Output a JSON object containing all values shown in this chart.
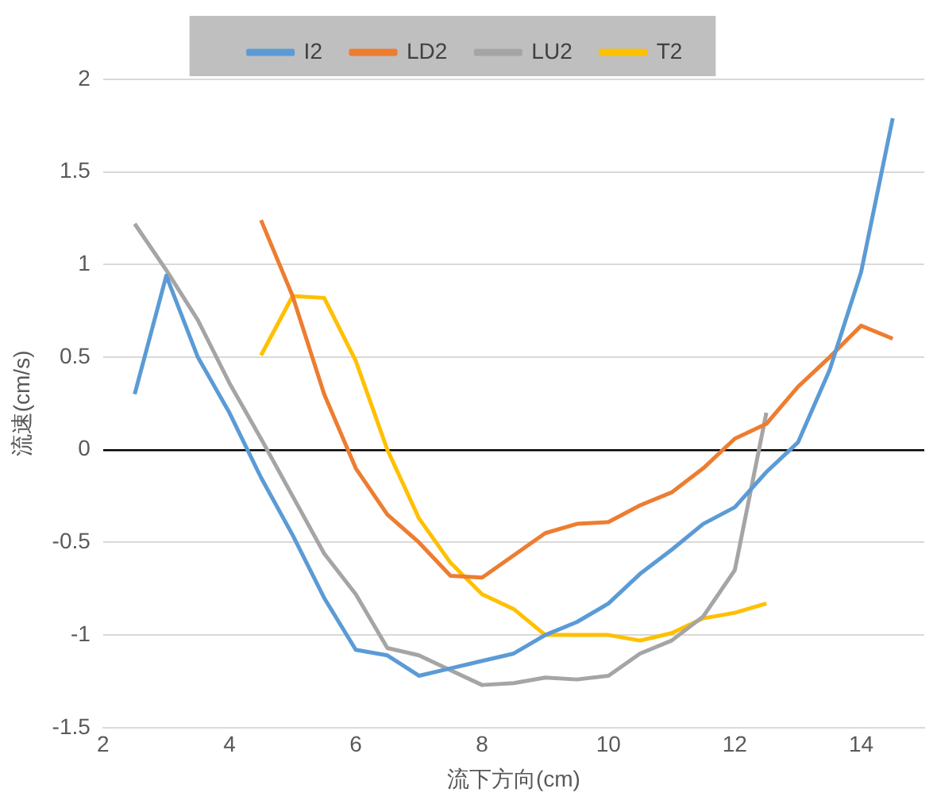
{
  "chart_data": {
    "type": "line",
    "xlabel": "流下方向(cm)",
    "ylabel": "流速(cm/s)",
    "xlim": [
      2,
      15
    ],
    "xticks": [
      2,
      4,
      6,
      8,
      10,
      12,
      14
    ],
    "ylim": [
      -1.5,
      2
    ],
    "yticks": [
      -1.5,
      -1,
      -0.5,
      0,
      0.5,
      1,
      1.5,
      2
    ],
    "grid": "y",
    "legend": "top",
    "marker": "none",
    "line_style": "solid",
    "series": [
      {
        "name": "I2",
        "color": "#5b9bd5",
        "x": [
          2.5,
          3,
          3.5,
          4,
          4.5,
          5,
          5.5,
          6,
          6.5,
          7,
          7.5,
          8,
          8.5,
          9,
          9.5,
          10,
          10.5,
          11,
          11.5,
          12,
          12.5,
          13,
          13.5,
          14,
          14.5
        ],
        "values": [
          0.3,
          0.94,
          0.5,
          0.2,
          -0.15,
          -0.46,
          -0.8,
          -1.08,
          -1.11,
          -1.22,
          -1.18,
          -1.14,
          -1.1,
          -1.0,
          -0.93,
          -0.83,
          -0.67,
          -0.54,
          -0.4,
          -0.31,
          -0.12,
          0.04,
          0.43,
          0.96,
          1.79
        ]
      },
      {
        "name": "LD2",
        "color": "#ed7d31",
        "x": [
          4.5,
          5,
          5.5,
          6,
          6.5,
          7,
          7.5,
          8,
          8.5,
          9,
          9.5,
          10,
          10.5,
          11,
          11.5,
          12,
          12.5,
          13,
          13.5,
          14,
          14.5
        ],
        "values": [
          1.24,
          0.83,
          0.3,
          -0.1,
          -0.35,
          -0.5,
          -0.68,
          -0.69,
          -0.57,
          -0.45,
          -0.4,
          -0.39,
          -0.3,
          -0.23,
          -0.1,
          0.06,
          0.14,
          0.34,
          0.5,
          0.67,
          0.6
        ]
      },
      {
        "name": "LU2",
        "color": "#a5a5a5",
        "x": [
          2.5,
          3,
          3.5,
          4,
          4.5,
          5,
          5.5,
          6,
          6.5,
          7,
          7.5,
          8,
          8.5,
          9,
          9.5,
          10,
          10.5,
          11,
          11.5,
          12,
          12.5
        ],
        "values": [
          1.22,
          0.97,
          0.7,
          0.36,
          0.06,
          -0.25,
          -0.56,
          -0.78,
          -1.07,
          -1.11,
          -1.19,
          -1.27,
          -1.26,
          -1.23,
          -1.24,
          -1.22,
          -1.1,
          -1.03,
          -0.9,
          -0.65,
          0.2
        ]
      },
      {
        "name": "T2",
        "color": "#ffc000",
        "x": [
          4.5,
          5,
          5.5,
          6,
          6.5,
          7,
          7.5,
          8,
          8.5,
          9,
          9.5,
          10,
          10.5,
          11,
          11.5,
          12,
          12.5
        ],
        "values": [
          0.51,
          0.83,
          0.82,
          0.48,
          0.0,
          -0.37,
          -0.61,
          -0.78,
          -0.86,
          -1.0,
          -1.0,
          -1.0,
          -1.03,
          -0.99,
          -0.91,
          -0.88,
          -0.83
        ]
      }
    ]
  }
}
